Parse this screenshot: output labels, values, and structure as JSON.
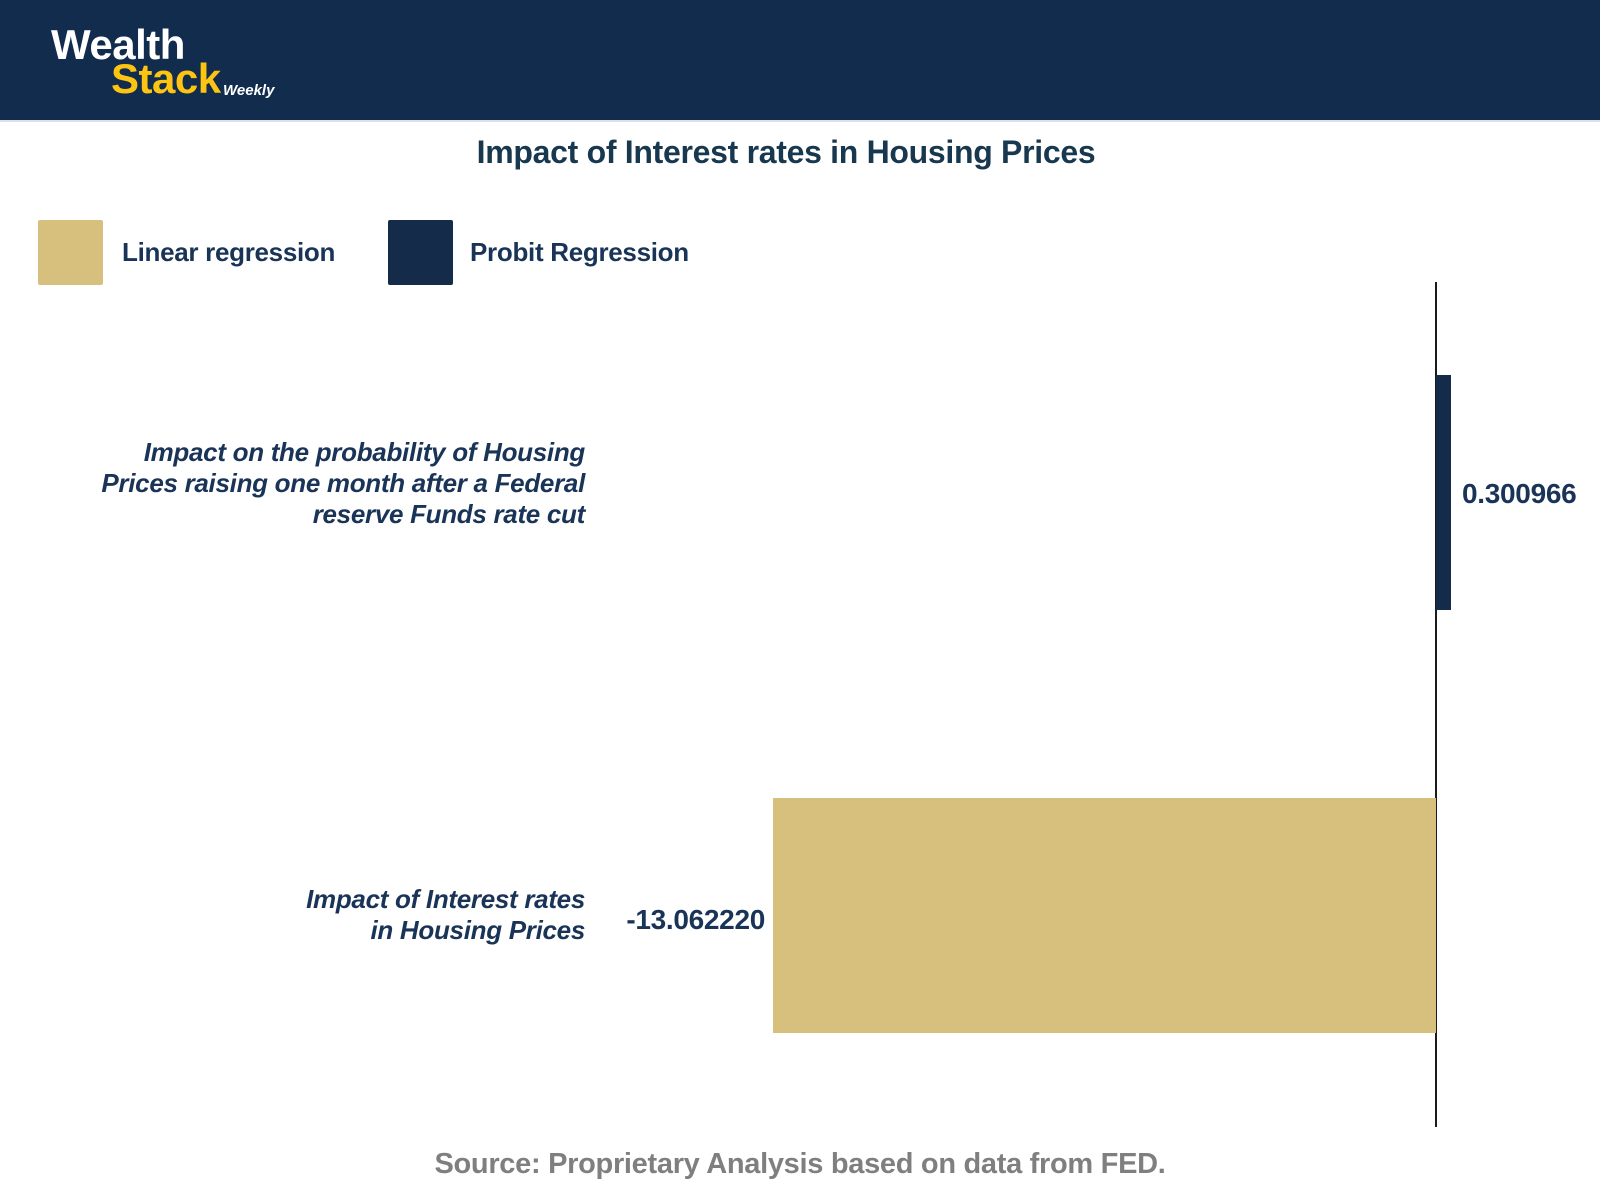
{
  "header": {
    "logo": {
      "word1": "Wealth",
      "word2": "Stack",
      "suffix": "Weekly"
    }
  },
  "legend": [
    {
      "label": "Linear regression",
      "color": "#d7c07e"
    },
    {
      "label": "Probit Regression",
      "color": "#142b4a"
    }
  ],
  "chart_data": {
    "type": "bar",
    "orientation": "horizontal",
    "title": "Impact of Interest rates in Housing Prices",
    "categories": [
      "Impact on the probability of Housing Prices raising one month after a Federal reserve Funds rate cut",
      "Impact of Interest rates in Housing Prices"
    ],
    "series": [
      {
        "name": "Probit Regression",
        "color": "#142b4a",
        "values": [
          0.300966,
          null
        ]
      },
      {
        "name": "Linear regression",
        "color": "#d7c07e",
        "values": [
          null,
          -13.06222
        ]
      }
    ],
    "rows": [
      {
        "label": "Impact on the probability of Housing\nPrices raising one month after a Federal\nreserve Funds rate cut",
        "series": "Probit Regression",
        "value": 0.300966,
        "value_label": "0.300966",
        "color": "#142b4a"
      },
      {
        "label": "Impact of Interest rates\nin Housing Prices",
        "series": "Linear regression",
        "value": -13.06222,
        "value_label": "-13.062220",
        "color": "#d7c07e"
      }
    ],
    "value_axis": {
      "zero_line_shown": true,
      "ticks_shown": false,
      "approx_range": [
        -13.07,
        3.3
      ]
    },
    "grid": false,
    "legend_position": "top-left"
  },
  "footer": {
    "source": "Source: Proprietary Analysis based on data from FED."
  },
  "colors": {
    "header_bg": "#122c4e",
    "logo_yellow": "#fdc511",
    "text_navy": "#1a3457",
    "bar_navy": "#142b4a",
    "bar_tan": "#d7c07e",
    "source_gray": "#7f7f7f",
    "axis_line": "#1b1b1b"
  }
}
